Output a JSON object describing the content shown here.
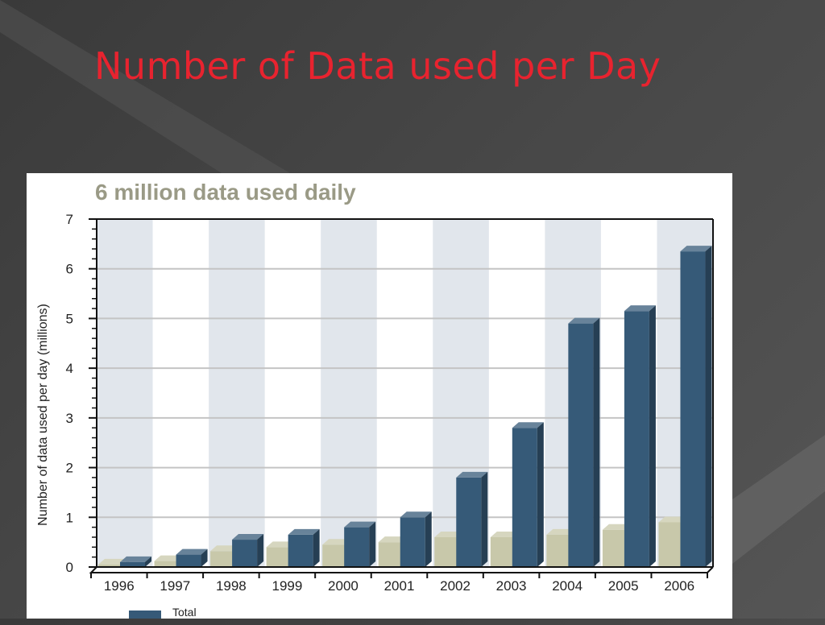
{
  "slide": {
    "title": "Number of  Data used per Day"
  },
  "chart_data": {
    "type": "bar",
    "title": "6 million data used daily",
    "ylabel": "Number of data used per day (millions)",
    "xlabel": "",
    "categories": [
      "1996",
      "1997",
      "1998",
      "1999",
      "2000",
      "2001",
      "2002",
      "2003",
      "2004",
      "2005",
      "2006"
    ],
    "series": [
      {
        "name": "Total",
        "color": "#365a78",
        "values": [
          0.1,
          0.25,
          0.55,
          0.65,
          0.8,
          1.0,
          1.8,
          2.8,
          4.9,
          5.15,
          6.35
        ]
      },
      {
        "values": [
          0.05,
          0.12,
          0.32,
          0.4,
          0.45,
          0.5,
          0.6,
          0.6,
          0.65,
          0.75,
          0.9
        ],
        "color": "#c8c8aa"
      }
    ],
    "ylim": [
      0,
      7
    ],
    "yticks": [
      0,
      1,
      2,
      3,
      4,
      5,
      6,
      7
    ],
    "grid": true,
    "legend": "bottom-left",
    "colors": {
      "band": "#e1e6ec",
      "grid": "#c4c4c4",
      "axis": "#111111"
    }
  }
}
